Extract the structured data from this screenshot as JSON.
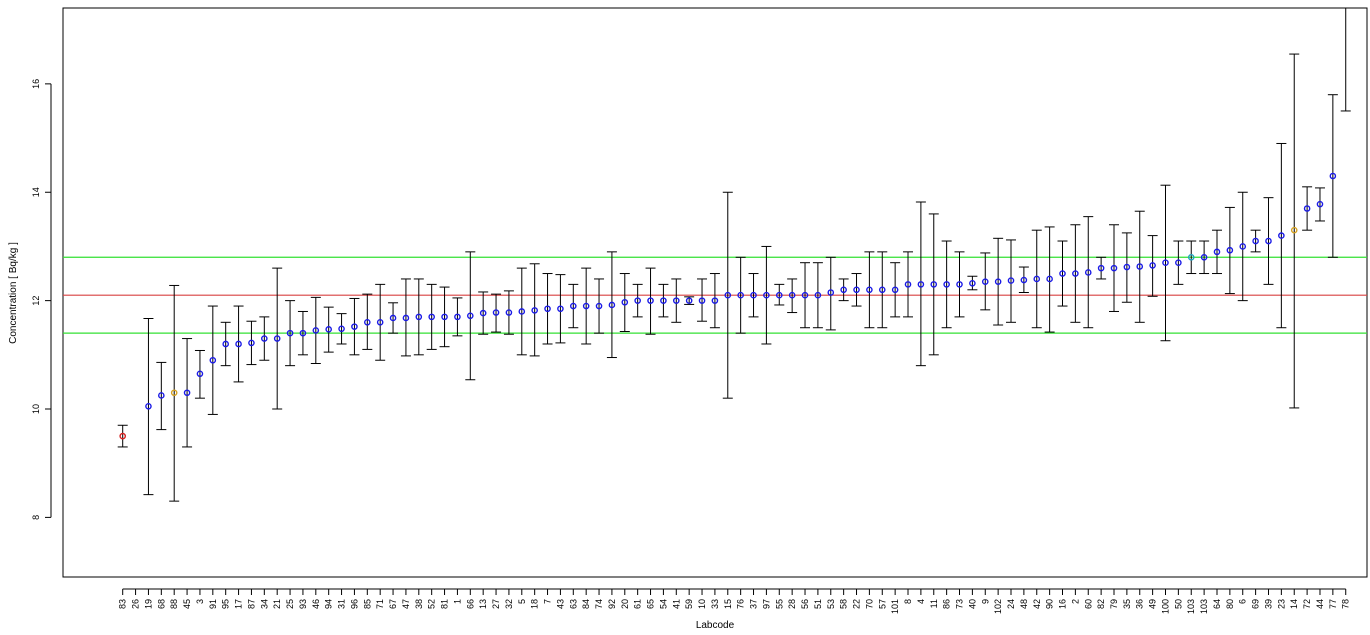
{
  "chart_data": {
    "type": "scatter",
    "xlabel": "Labcode",
    "ylabel": "Concentration [ Bq/kg ]",
    "ylim": [
      6.9,
      17.4
    ],
    "yticks": [
      8,
      10,
      12,
      14,
      16
    ],
    "reference_lines": [
      {
        "name": "assigned value",
        "value": 12.1,
        "color": "#d94040"
      },
      {
        "name": "upper limit",
        "value": 12.8,
        "color": "#33e033"
      },
      {
        "name": "lower limit",
        "value": 11.4,
        "color": "#33e033"
      }
    ],
    "grid": false,
    "legend": "none",
    "labs": [
      "83",
      "26",
      "19",
      "68",
      "88",
      "45",
      "3",
      "91",
      "95",
      "17",
      "87",
      "34",
      "21",
      "25",
      "93",
      "46",
      "94",
      "31",
      "96",
      "85",
      "71",
      "67",
      "47",
      "38",
      "52",
      "81",
      "1",
      "66",
      "13",
      "27",
      "32",
      "5",
      "18",
      "7",
      "43",
      "63",
      "84",
      "74",
      "92",
      "20",
      "61",
      "65",
      "54",
      "41",
      "59",
      "10",
      "33",
      "15",
      "76",
      "37",
      "97",
      "55",
      "28",
      "56",
      "51",
      "53",
      "58",
      "22",
      "70",
      "57",
      "101",
      "8",
      "4",
      "11",
      "86",
      "73",
      "40",
      "9",
      "102",
      "24",
      "48",
      "42",
      "90",
      "16",
      "2",
      "60",
      "82",
      "79",
      "35",
      "36",
      "49",
      "100",
      "50",
      "103",
      "103",
      "64",
      "80",
      "6",
      "69",
      "39",
      "23",
      "14",
      "72",
      "44",
      "77",
      "78"
    ],
    "values": [
      9.5,
      null,
      10.05,
      10.25,
      10.3,
      10.3,
      10.65,
      10.9,
      11.2,
      11.2,
      11.22,
      11.3,
      11.3,
      11.4,
      11.4,
      11.45,
      11.47,
      11.48,
      11.52,
      11.6,
      11.6,
      11.68,
      11.68,
      11.7,
      11.7,
      11.7,
      11.7,
      11.72,
      11.77,
      11.78,
      11.78,
      11.8,
      11.82,
      11.85,
      11.85,
      11.9,
      11.9,
      11.9,
      11.92,
      11.97,
      12.0,
      12.0,
      12.0,
      12.0,
      12.0,
      12.0,
      12.0,
      12.1,
      12.1,
      12.1,
      12.1,
      12.1,
      12.1,
      12.1,
      12.1,
      12.15,
      12.2,
      12.2,
      12.2,
      12.2,
      12.2,
      12.3,
      12.3,
      12.3,
      12.3,
      12.3,
      12.32,
      12.35,
      12.35,
      12.37,
      12.38,
      12.4,
      12.4,
      12.5,
      12.5,
      12.52,
      12.6,
      12.6,
      12.62,
      12.63,
      12.65,
      12.7,
      12.7,
      12.8,
      12.8,
      12.9,
      12.93,
      13.0,
      13.1,
      13.1,
      13.2,
      13.3,
      13.7,
      13.78,
      14.3,
      null
    ],
    "lower": [
      9.3,
      null,
      8.42,
      9.62,
      8.3,
      9.3,
      10.2,
      9.9,
      10.8,
      10.5,
      10.82,
      10.9,
      10.0,
      10.8,
      11.0,
      10.84,
      11.05,
      11.2,
      11.0,
      11.1,
      10.9,
      11.4,
      10.98,
      11.0,
      11.1,
      11.15,
      11.35,
      10.54,
      11.38,
      11.42,
      11.38,
      11.0,
      10.98,
      11.2,
      11.22,
      11.5,
      11.2,
      11.4,
      10.95,
      11.43,
      11.7,
      11.38,
      11.7,
      11.6,
      11.93,
      11.62,
      11.5,
      10.2,
      11.4,
      11.7,
      11.2,
      11.92,
      11.78,
      11.5,
      11.5,
      11.46,
      12.0,
      11.9,
      11.5,
      11.5,
      11.7,
      11.7,
      10.8,
      11.0,
      11.5,
      11.7,
      12.2,
      11.83,
      11.55,
      11.6,
      12.15,
      11.5,
      11.42,
      11.9,
      11.6,
      11.5,
      12.4,
      11.8,
      11.97,
      11.6,
      12.08,
      11.26,
      12.3,
      12.5,
      12.5,
      12.5,
      12.13,
      12.0,
      12.9,
      12.3,
      11.5,
      10.02,
      13.3,
      13.47,
      12.8,
      15.5
    ],
    "upper": [
      9.7,
      null,
      11.67,
      10.86,
      12.28,
      11.3,
      11.08,
      11.9,
      11.6,
      11.9,
      11.62,
      11.7,
      12.6,
      12.0,
      11.8,
      12.06,
      11.88,
      11.76,
      12.04,
      12.12,
      12.3,
      11.96,
      12.4,
      12.4,
      12.3,
      12.25,
      12.05,
      12.9,
      12.16,
      12.12,
      12.18,
      12.6,
      12.68,
      12.5,
      12.48,
      12.3,
      12.6,
      12.4,
      12.9,
      12.5,
      12.3,
      12.6,
      12.3,
      12.4,
      12.07,
      12.4,
      12.5,
      14.0,
      12.8,
      12.5,
      13.0,
      12.3,
      12.4,
      12.7,
      12.7,
      12.8,
      12.4,
      12.5,
      12.9,
      12.9,
      12.7,
      12.9,
      13.82,
      13.6,
      13.1,
      12.9,
      12.45,
      12.88,
      13.15,
      13.12,
      12.62,
      13.3,
      13.36,
      13.1,
      13.4,
      13.55,
      12.8,
      13.4,
      13.25,
      13.65,
      13.2,
      14.13,
      13.1,
      13.1,
      13.1,
      13.3,
      13.72,
      14.0,
      13.3,
      13.9,
      14.9,
      16.55,
      14.1,
      14.08,
      15.8,
      17.4
    ],
    "point_colors": {
      "default": "#1a1ae6",
      "highlight": {
        "0": "#d62020",
        "4": "#d4a020",
        "91": "#d4a020",
        "83": "#20a0c0"
      }
    }
  }
}
